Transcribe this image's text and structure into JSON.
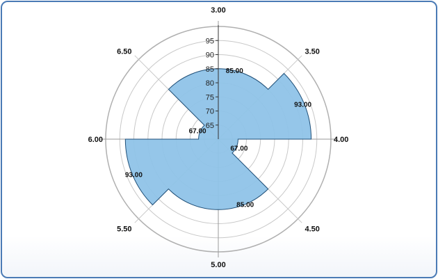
{
  "chart_data": {
    "type": "polar",
    "subtype": "wedge-area",
    "title": "",
    "angle_axis": {
      "labels": [
        "3.00",
        "3.50",
        "4.00",
        "4.50",
        "5.00",
        "5.50",
        "6.00",
        "6.50"
      ],
      "min": 3.0,
      "max": 7.0
    },
    "radial_axis": {
      "min": 60,
      "max": 100,
      "tick_labels": [
        "65",
        "70",
        "75",
        "80",
        "85",
        "90",
        "95"
      ],
      "ticks": [
        65,
        70,
        75,
        80,
        85,
        90,
        95
      ]
    },
    "series": [
      {
        "x": [
          3.0,
          3.5,
          4.0,
          4.5,
          5.0,
          5.5,
          6.0,
          6.5
        ],
        "values": [
          85,
          93,
          67,
          85,
          85,
          93,
          67,
          85
        ],
        "labels": [
          "85.00",
          "93.00",
          "67.00",
          "85.00",
          "93.00",
          "67.00"
        ],
        "fill": "#8fc3e8",
        "stroke": "#1f4f78"
      }
    ],
    "grid": true,
    "colors": {
      "fill": "#8fc3e8",
      "stroke": "#1f4f78",
      "grid": "#c8c8c8",
      "border": "#4a7ab5"
    }
  }
}
